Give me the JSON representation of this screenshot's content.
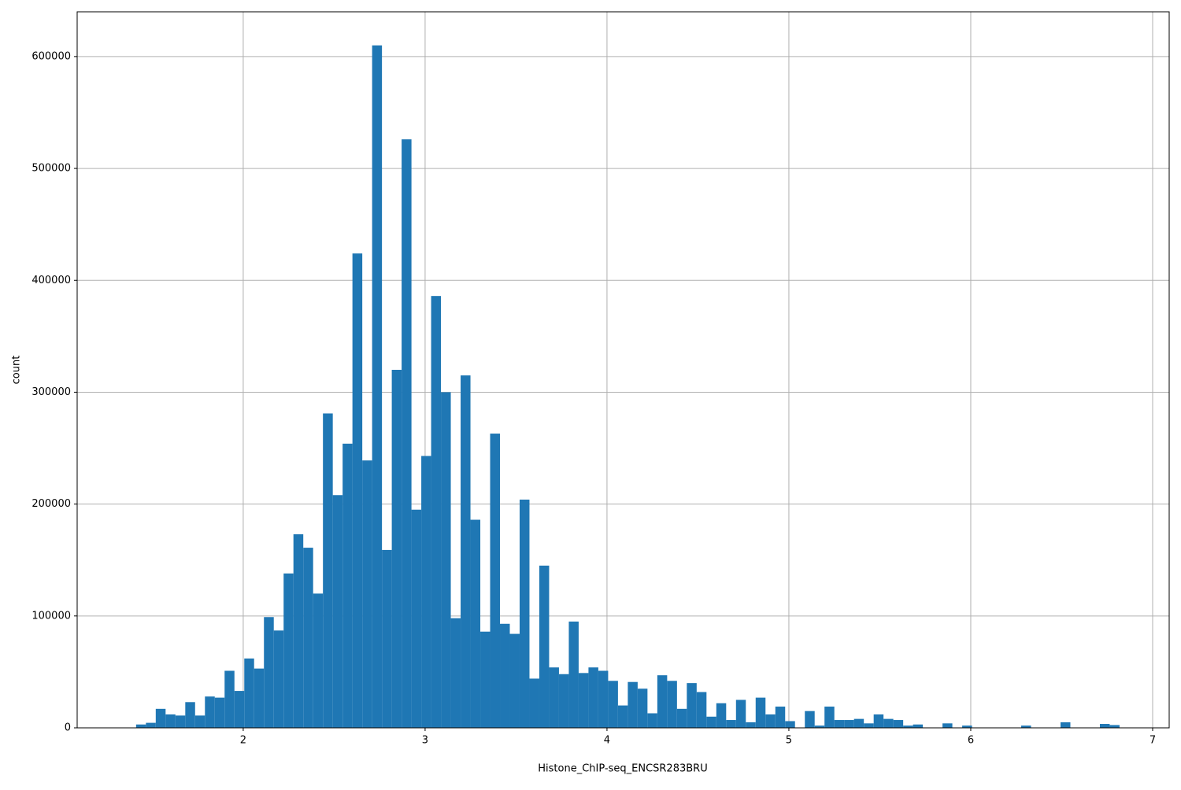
{
  "chart_data": {
    "type": "histogram",
    "xlabel": "Histone_ChIP-seq_ENCSR283BRU",
    "ylabel": "count",
    "color": "#1f77b4",
    "grid": true,
    "bins": [
      1.411,
      1.4651,
      1.5191,
      1.5732,
      1.6273,
      1.6814,
      1.7354,
      1.7895,
      1.8436,
      1.8976,
      1.9517,
      2.0058,
      2.0598,
      2.1139,
      2.168,
      2.2221,
      2.2761,
      2.3302,
      2.3843,
      2.4383,
      2.4924,
      2.5465,
      2.6005,
      2.6546,
      2.7087,
      2.7628,
      2.8168,
      2.8709,
      2.925,
      2.979,
      3.0331,
      3.0872,
      3.1412,
      3.1953,
      3.2494,
      3.3035,
      3.3575,
      3.4116,
      3.4657,
      3.5197,
      3.5738,
      3.6279,
      3.6819,
      3.736,
      3.7901,
      3.8442,
      3.8982,
      3.9523,
      4.0064,
      4.0604,
      4.1145,
      4.1686,
      4.2226,
      4.2767,
      4.3308,
      4.3849,
      4.4389,
      4.493,
      4.5471,
      4.6011,
      4.6552,
      4.7093,
      4.7633,
      4.8174,
      4.8715,
      4.9256,
      4.9796,
      5.0337,
      5.0878,
      5.1418,
      5.1959,
      5.25,
      5.304,
      5.3581,
      5.4122,
      5.4663,
      5.5203,
      5.5744,
      5.6285,
      5.6825,
      5.7366,
      5.7907,
      5.8447,
      5.8988,
      5.9529,
      6.007,
      6.061,
      6.1151,
      6.1692,
      6.2232,
      6.2773,
      6.3314,
      6.3854,
      6.4395,
      6.4936,
      6.5477,
      6.6017,
      6.6558,
      6.7099,
      6.7639,
      6.818
    ],
    "counts": [
      3000,
      4500,
      17000,
      12000,
      11000,
      23000,
      11000,
      28000,
      27000,
      51000,
      33000,
      62000,
      53000,
      99000,
      87000,
      138000,
      173000,
      161000,
      120000,
      281000,
      208000,
      254000,
      424000,
      239000,
      610000,
      159000,
      320000,
      526000,
      195000,
      243000,
      386000,
      300000,
      98000,
      315000,
      186000,
      86000,
      263000,
      93000,
      84000,
      204000,
      44000,
      145000,
      54000,
      48000,
      95000,
      49000,
      54000,
      51000,
      42000,
      20000,
      41000,
      35000,
      13000,
      47000,
      42000,
      17000,
      40000,
      32000,
      10000,
      22000,
      7000,
      25000,
      5000,
      27000,
      12000,
      19000,
      6000,
      0,
      15000,
      2000,
      19000,
      7000,
      7000,
      8000,
      4000,
      12000,
      8000,
      7000,
      2000,
      3000,
      0,
      0,
      4000,
      0,
      2000,
      0,
      0,
      0,
      0,
      0,
      2000,
      0,
      0,
      0,
      5000,
      0,
      0,
      0,
      3500,
      2500
    ],
    "xlim": [
      1.087,
      7.091
    ],
    "ylim": [
      0,
      640000
    ],
    "xticks": [
      2,
      3,
      4,
      5,
      6,
      7
    ],
    "yticks": [
      0,
      100000,
      200000,
      300000,
      400000,
      500000,
      600000
    ]
  }
}
